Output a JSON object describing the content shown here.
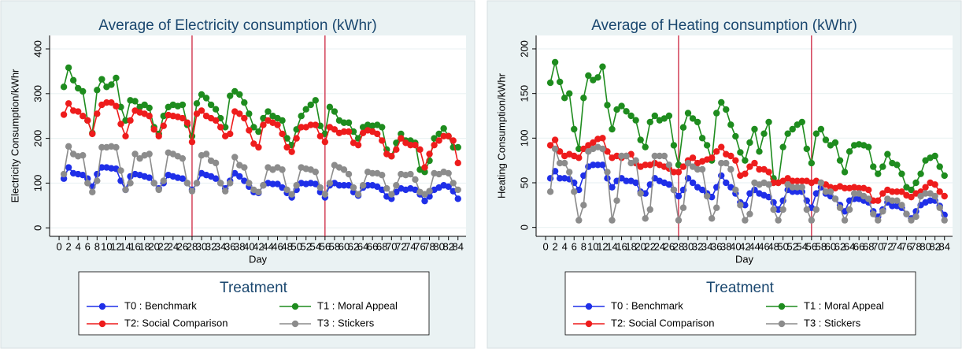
{
  "chart_data": [
    {
      "type": "line",
      "title": "Average of Electricity consumption (kWhr)",
      "x_label": "Day",
      "y_label": "Electricity Consumption/kWhr",
      "legend_title": "Treatment",
      "grid": true,
      "xlim": [
        -2,
        85.7
      ],
      "ylim": [
        -19,
        430
      ],
      "xticks": [
        0,
        2,
        4,
        6,
        8,
        10,
        12,
        14,
        16,
        18,
        20,
        22,
        24,
        26,
        28,
        30,
        32,
        34,
        36,
        38,
        40,
        42,
        44,
        46,
        48,
        50,
        52,
        54,
        56,
        58,
        60,
        62,
        64,
        66,
        68,
        70,
        72,
        74,
        76,
        78,
        80,
        82,
        84
      ],
      "yticks": [
        0,
        100,
        200,
        300,
        400
      ],
      "reference_lines": [
        28,
        56
      ],
      "reference_line_color": "#c8102e",
      "x": [
        1,
        2,
        3,
        4,
        5,
        6,
        7,
        8,
        9,
        10,
        11,
        12,
        13,
        14,
        15,
        16,
        17,
        18,
        19,
        20,
        21,
        22,
        23,
        24,
        25,
        26,
        27,
        28,
        29,
        30,
        31,
        32,
        33,
        34,
        35,
        36,
        37,
        38,
        39,
        40,
        41,
        42,
        43,
        44,
        45,
        46,
        47,
        48,
        49,
        50,
        51,
        52,
        53,
        54,
        55,
        56,
        57,
        58,
        59,
        60,
        61,
        62,
        63,
        64,
        65,
        66,
        67,
        68,
        69,
        70,
        71,
        72,
        73,
        74,
        75,
        76,
        77,
        78,
        79,
        80,
        81,
        82,
        83,
        84
      ],
      "series": [
        {
          "name": "T0 : Benchmark",
          "color": "#1f2fe8",
          "values": [
            110,
            135,
            122,
            120,
            118,
            110,
            92,
            120,
            135,
            135,
            133,
            132,
            105,
            85,
            115,
            120,
            118,
            115,
            112,
            100,
            88,
            100,
            118,
            115,
            112,
            110,
            100,
            85,
            100,
            122,
            118,
            115,
            110,
            100,
            88,
            105,
            122,
            115,
            105,
            92,
            80,
            78,
            95,
            100,
            98,
            98,
            90,
            78,
            68,
            85,
            100,
            98,
            100,
            98,
            80,
            68,
            95,
            100,
            95,
            95,
            95,
            80,
            72,
            90,
            95,
            95,
            92,
            85,
            70,
            65,
            80,
            88,
            85,
            88,
            85,
            75,
            60,
            70,
            85,
            90,
            95,
            92,
            82,
            65
          ]
        },
        {
          "name": "T1 : Moral Appeal",
          "color": "#1e8c1e",
          "values": [
            315,
            358,
            330,
            312,
            305,
            240,
            212,
            308,
            332,
            315,
            320,
            335,
            270,
            240,
            285,
            283,
            270,
            275,
            268,
            225,
            210,
            250,
            270,
            275,
            272,
            275,
            230,
            205,
            278,
            298,
            290,
            275,
            265,
            245,
            225,
            295,
            305,
            298,
            280,
            255,
            225,
            215,
            245,
            260,
            250,
            245,
            240,
            200,
            185,
            220,
            250,
            265,
            275,
            285,
            228,
            210,
            270,
            260,
            240,
            235,
            235,
            215,
            200,
            225,
            230,
            228,
            230,
            225,
            175,
            160,
            190,
            210,
            195,
            195,
            190,
            130,
            125,
            150,
            200,
            210,
            222,
            205,
            180,
            180
          ]
        },
        {
          "name": "T2: Social Comparison",
          "color": "#ee1c1c",
          "values": [
            253,
            278,
            262,
            260,
            250,
            240,
            210,
            255,
            275,
            280,
            280,
            272,
            232,
            205,
            240,
            262,
            258,
            255,
            250,
            220,
            205,
            228,
            252,
            250,
            248,
            245,
            235,
            192,
            255,
            262,
            250,
            245,
            240,
            225,
            205,
            210,
            260,
            255,
            245,
            218,
            188,
            180,
            230,
            240,
            235,
            230,
            210,
            180,
            170,
            200,
            225,
            225,
            230,
            230,
            205,
            192,
            225,
            220,
            212,
            215,
            215,
            190,
            185,
            212,
            218,
            215,
            210,
            195,
            165,
            160,
            175,
            200,
            190,
            185,
            185,
            175,
            135,
            165,
            185,
            195,
            205,
            205,
            195,
            145
          ]
        },
        {
          "name": "T3 : Stickers",
          "color": "#8c8c8c",
          "values": [
            120,
            182,
            165,
            160,
            162,
            100,
            80,
            105,
            180,
            180,
            182,
            180,
            128,
            85,
            100,
            165,
            155,
            162,
            165,
            100,
            85,
            105,
            168,
            165,
            160,
            155,
            100,
            82,
            100,
            162,
            165,
            150,
            145,
            100,
            82,
            100,
            158,
            140,
            135,
            100,
            85,
            80,
            95,
            135,
            130,
            135,
            130,
            85,
            75,
            95,
            135,
            132,
            130,
            125,
            90,
            75,
            100,
            140,
            135,
            130,
            120,
            90,
            75,
            95,
            125,
            122,
            122,
            118,
            88,
            75,
            95,
            120,
            118,
            120,
            108,
            80,
            75,
            82,
            122,
            120,
            125,
            122,
            100,
            85
          ]
        }
      ]
    },
    {
      "type": "line",
      "title": "Average of Heating consumption (kWhr)",
      "x_label": "Day",
      "y_label": "Heating Consumption/kWhr",
      "legend_title": "Treatment",
      "grid": true,
      "xlim": [
        -2,
        85.7
      ],
      "ylim": [
        -10,
        215
      ],
      "xticks": [
        0,
        2,
        4,
        6,
        8,
        10,
        12,
        14,
        16,
        18,
        20,
        22,
        24,
        26,
        28,
        30,
        32,
        34,
        36,
        38,
        40,
        42,
        44,
        46,
        48,
        50,
        52,
        54,
        56,
        58,
        60,
        62,
        64,
        66,
        68,
        70,
        72,
        74,
        76,
        78,
        80,
        82,
        84
      ],
      "yticks": [
        0,
        50,
        100,
        150,
        200
      ],
      "reference_lines": [
        28,
        56
      ],
      "reference_line_color": "#c8102e",
      "x": [
        1,
        2,
        3,
        4,
        5,
        6,
        7,
        8,
        9,
        10,
        11,
        12,
        13,
        14,
        15,
        16,
        17,
        18,
        19,
        20,
        21,
        22,
        23,
        24,
        25,
        26,
        27,
        28,
        29,
        30,
        31,
        32,
        33,
        34,
        35,
        36,
        37,
        38,
        39,
        40,
        41,
        42,
        43,
        44,
        45,
        46,
        47,
        48,
        49,
        50,
        51,
        52,
        53,
        54,
        55,
        56,
        57,
        58,
        59,
        60,
        61,
        62,
        63,
        64,
        65,
        66,
        67,
        68,
        69,
        70,
        71,
        72,
        73,
        74,
        75,
        76,
        77,
        78,
        79,
        80,
        81,
        82,
        83,
        84
      ],
      "series": [
        {
          "name": "T0 : Benchmark",
          "color": "#1f2fe8",
          "values": [
            55,
            63,
            55,
            55,
            54,
            50,
            42,
            58,
            68,
            70,
            70,
            70,
            55,
            45,
            52,
            55,
            52,
            52,
            50,
            40,
            38,
            48,
            55,
            52,
            50,
            48,
            42,
            35,
            42,
            55,
            50,
            45,
            42,
            38,
            34,
            45,
            58,
            50,
            45,
            38,
            28,
            25,
            38,
            42,
            38,
            36,
            34,
            28,
            20,
            30,
            42,
            40,
            40,
            40,
            30,
            22,
            38,
            45,
            38,
            35,
            32,
            25,
            18,
            30,
            32,
            32,
            30,
            28,
            18,
            12,
            20,
            28,
            24,
            24,
            22,
            15,
            10,
            18,
            25,
            28,
            30,
            30,
            24,
            14
          ]
        },
        {
          "name": "T1 : Moral Appeal",
          "color": "#1e8c1e",
          "values": [
            162,
            185,
            163,
            145,
            150,
            110,
            88,
            145,
            170,
            165,
            168,
            180,
            137,
            110,
            132,
            136,
            130,
            125,
            120,
            98,
            90,
            118,
            125,
            120,
            122,
            125,
            92,
            70,
            112,
            128,
            122,
            118,
            100,
            92,
            75,
            128,
            140,
            132,
            115,
            102,
            84,
            75,
            95,
            110,
            85,
            105,
            118,
            55,
            50,
            90,
            105,
            110,
            115,
            118,
            88,
            72,
            105,
            110,
            98,
            92,
            95,
            75,
            62,
            85,
            92,
            93,
            92,
            90,
            68,
            60,
            68,
            82,
            72,
            70,
            60,
            45,
            42,
            50,
            60,
            75,
            78,
            80,
            68,
            58
          ]
        },
        {
          "name": "T2: Social Comparison",
          "color": "#ee1c1c",
          "values": [
            92,
            98,
            85,
            80,
            82,
            80,
            78,
            88,
            92,
            95,
            99,
            100,
            85,
            78,
            80,
            78,
            80,
            82,
            72,
            68,
            70,
            70,
            72,
            70,
            68,
            66,
            62,
            62,
            68,
            75,
            78,
            72,
            74,
            76,
            78,
            85,
            90,
            82,
            80,
            75,
            58,
            60,
            68,
            72,
            65,
            65,
            62,
            50,
            50,
            52,
            55,
            52,
            52,
            52,
            52,
            50,
            52,
            50,
            48,
            45,
            44,
            46,
            44,
            44,
            45,
            44,
            44,
            42,
            30,
            30,
            38,
            42,
            40,
            40,
            40,
            36,
            34,
            38,
            40,
            45,
            50,
            48,
            40,
            35
          ]
        },
        {
          "name": "T3 : Stickers",
          "color": "#8c8c8c",
          "values": [
            40,
            88,
            72,
            72,
            62,
            40,
            8,
            25,
            85,
            88,
            90,
            88,
            62,
            8,
            30,
            80,
            80,
            72,
            75,
            38,
            10,
            20,
            80,
            80,
            80,
            70,
            42,
            8,
            22,
            72,
            68,
            65,
            65,
            35,
            10,
            22,
            72,
            72,
            65,
            42,
            25,
            8,
            15,
            50,
            48,
            50,
            48,
            20,
            8,
            20,
            48,
            45,
            45,
            45,
            20,
            8,
            20,
            50,
            40,
            40,
            32,
            22,
            8,
            20,
            38,
            38,
            35,
            32,
            15,
            8,
            18,
            32,
            30,
            30,
            25,
            15,
            8,
            12,
            35,
            38,
            38,
            35,
            22,
            8
          ]
        }
      ]
    }
  ]
}
